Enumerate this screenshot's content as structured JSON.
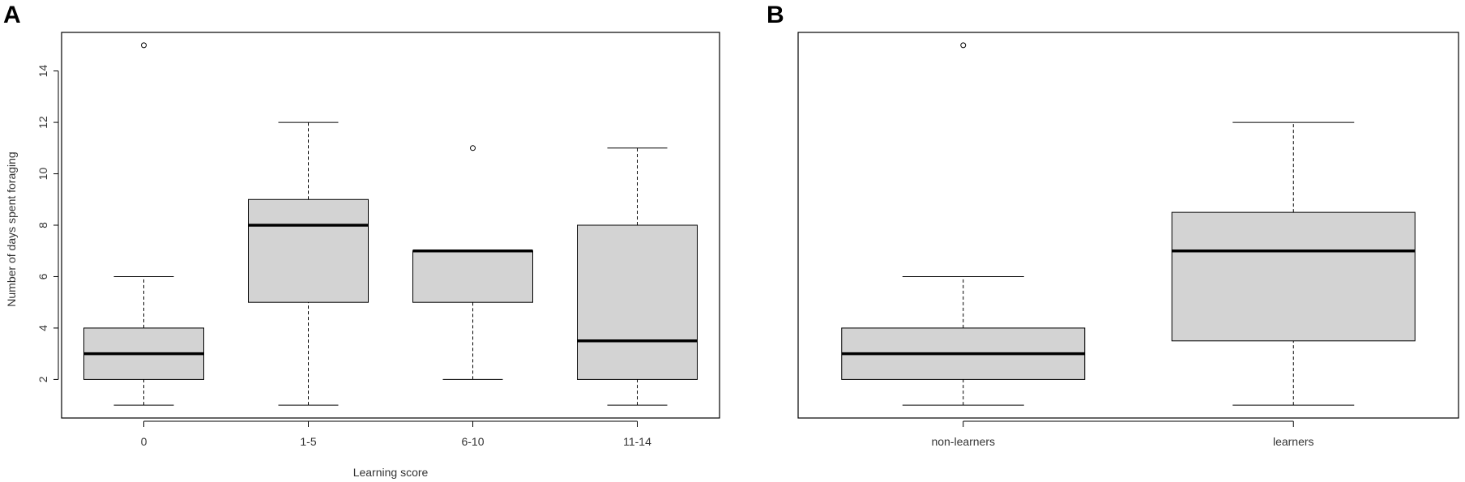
{
  "chart_data": [
    {
      "panel_label": "A",
      "type": "boxplot",
      "title": "",
      "xlabel": "Learning score",
      "ylabel": "Number of days spent foraging",
      "ylim": [
        0.5,
        15.5
      ],
      "yticks": [
        2,
        4,
        6,
        8,
        10,
        12,
        14
      ],
      "grid": false,
      "categories": [
        "0",
        "1-5",
        "6-10",
        "11-14"
      ],
      "boxes": [
        {
          "category": "0",
          "whisker_low": 1,
          "q1": 2,
          "median": 3,
          "q3": 4,
          "whisker_high": 6,
          "outliers": [
            15
          ]
        },
        {
          "category": "1-5",
          "whisker_low": 1,
          "q1": 5,
          "median": 8,
          "q3": 9,
          "whisker_high": 12,
          "outliers": []
        },
        {
          "category": "6-10",
          "whisker_low": 2,
          "q1": 5,
          "median": 7,
          "q3": 7,
          "whisker_high": 7,
          "outliers": [
            11
          ]
        },
        {
          "category": "11-14",
          "whisker_low": 1,
          "q1": 2,
          "median": 3.5,
          "q3": 8,
          "whisker_high": 11,
          "outliers": []
        }
      ],
      "box_fill": "#d3d3d3"
    },
    {
      "panel_label": "B",
      "type": "boxplot",
      "title": "",
      "xlabel": "",
      "ylabel": "",
      "ylim": [
        0.5,
        15.5
      ],
      "yticks": [],
      "grid": false,
      "categories": [
        "non-learners",
        "learners"
      ],
      "boxes": [
        {
          "category": "non-learners",
          "whisker_low": 1,
          "q1": 2,
          "median": 3,
          "q3": 4,
          "whisker_high": 6,
          "outliers": [
            15
          ]
        },
        {
          "category": "learners",
          "whisker_low": 1,
          "q1": 3.5,
          "median": 7,
          "q3": 8.5,
          "whisker_high": 12,
          "outliers": []
        }
      ],
      "box_fill": "#d3d3d3"
    }
  ]
}
